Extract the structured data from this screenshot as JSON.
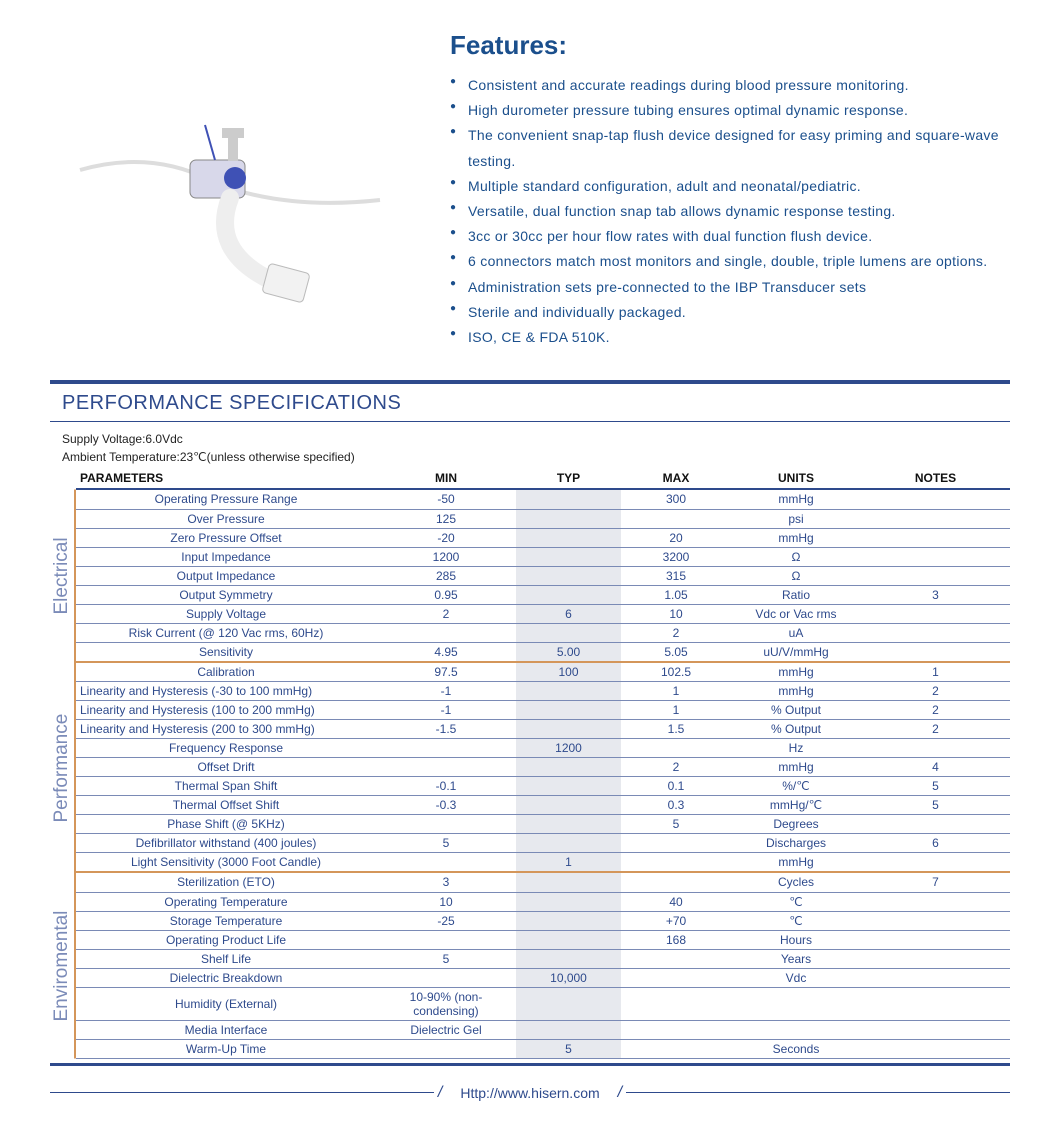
{
  "features": {
    "title": "Features:",
    "items": [
      "Consistent and accurate readings during blood pressure monitoring.",
      "High durometer pressure tubing ensures optimal dynamic response.",
      "The convenient snap-tap flush device designed for easy priming and square-wave testing.",
      "Multiple standard configuration, adult and neonatal/pediatric.",
      "Versatile, dual function snap tab allows dynamic response testing.",
      "3cc or 30cc per hour flow rates with dual function flush device.",
      "6 connectors match most monitors and single, double, triple lumens are options.",
      "Administration sets pre-connected to the IBP Transducer sets",
      "Sterile and individually packaged.",
      "ISO, CE & FDA 510K."
    ]
  },
  "product_image": {
    "description": "IBP Transducer with tubing and connector",
    "accent_color": "#4b5db8",
    "body_color": "#e8e8f0"
  },
  "spec": {
    "title": "PERFORMANCE SPECIFICATIONS",
    "conditions": {
      "line1": "Supply Voltage:6.0Vdc",
      "line2": "Ambient Temperature:23℃(unless otherwise specified)"
    },
    "headers": [
      "PARAMETERS",
      "MIN",
      "TYP",
      "MAX",
      "UNITS",
      "NOTES"
    ],
    "sections": [
      {
        "label": "Electrical",
        "rows": [
          {
            "p": "Operating Pressure Range",
            "min": "-50",
            "typ": "",
            "max": "300",
            "u": "mmHg",
            "n": ""
          },
          {
            "p": "Over  Pressure",
            "min": "125",
            "typ": "",
            "max": "",
            "u": "psi",
            "n": ""
          },
          {
            "p": "Zero Pressure Offset",
            "min": "-20",
            "typ": "",
            "max": "20",
            "u": "mmHg",
            "n": ""
          },
          {
            "p": "Input Impedance",
            "min": "1200",
            "typ": "",
            "max": "3200",
            "u": "Ω",
            "n": ""
          },
          {
            "p": "Output Impedance",
            "min": "285",
            "typ": "",
            "max": "315",
            "u": "Ω",
            "n": ""
          },
          {
            "p": "Output Symmetry",
            "min": "0.95",
            "typ": "",
            "max": "1.05",
            "u": "Ratio",
            "n": "3"
          },
          {
            "p": "Supply Voltage",
            "min": "2",
            "typ": "6",
            "max": "10",
            "u": "Vdc or Vac rms",
            "n": ""
          },
          {
            "p": "Risk Current (@ 120 Vac rms, 60Hz)",
            "min": "",
            "typ": "",
            "max": "2",
            "u": "uA",
            "n": ""
          },
          {
            "p": "Sensitivity",
            "min": "4.95",
            "typ": "5.00",
            "max": "5.05",
            "u": "uU/V/mmHg",
            "n": ""
          }
        ]
      },
      {
        "label": "Performance",
        "rows": [
          {
            "p": "Calibration",
            "min": "97.5",
            "typ": "100",
            "max": "102.5",
            "u": "mmHg",
            "n": "1"
          },
          {
            "p": "Linearity and Hysteresis (-30 to 100 mmHg)",
            "min": "-1",
            "typ": "",
            "max": "1",
            "u": "mmHg",
            "n": "2",
            "left": true
          },
          {
            "p": "Linearity and Hysteresis (100 to 200 mmHg)",
            "min": "-1",
            "typ": "",
            "max": "1",
            "u": "% Output",
            "n": "2",
            "left": true
          },
          {
            "p": "Linearity and Hysteresis (200 to 300 mmHg)",
            "min": "-1.5",
            "typ": "",
            "max": "1.5",
            "u": "% Output",
            "n": "2",
            "left": true
          },
          {
            "p": "Frequency Response",
            "min": "",
            "typ": "1200",
            "max": "",
            "u": "Hz",
            "n": ""
          },
          {
            "p": "Offset Drift",
            "min": "",
            "typ": "",
            "max": "2",
            "u": "mmHg",
            "n": "4"
          },
          {
            "p": "Thermal Span Shift",
            "min": "-0.1",
            "typ": "",
            "max": "0.1",
            "u": "%/℃",
            "n": "5"
          },
          {
            "p": "Thermal Offset Shift",
            "min": "-0.3",
            "typ": "",
            "max": "0.3",
            "u": "mmHg/℃",
            "n": "5"
          },
          {
            "p": "Phase Shift (@ 5KHz)",
            "min": "",
            "typ": "",
            "max": "5",
            "u": "Degrees",
            "n": ""
          },
          {
            "p": "Defibrillator withstand (400 joules)",
            "min": "5",
            "typ": "",
            "max": "",
            "u": "Discharges",
            "n": "6"
          },
          {
            "p": "Light Sensitivity (3000 Foot Candle)",
            "min": "",
            "typ": "1",
            "max": "",
            "u": "mmHg",
            "n": ""
          }
        ]
      },
      {
        "label": "Enviromental",
        "rows": [
          {
            "p": "Sterilization (ETO)",
            "min": "3",
            "typ": "",
            "max": "",
            "u": "Cycles",
            "n": "7"
          },
          {
            "p": "Operating Temperature",
            "min": "10",
            "typ": "",
            "max": "40",
            "u": "℃",
            "n": ""
          },
          {
            "p": "Storage Temperature",
            "min": "-25",
            "typ": "",
            "max": "+70",
            "u": "℃",
            "n": ""
          },
          {
            "p": "Operating Product Life",
            "min": "",
            "typ": "",
            "max": "168",
            "u": "Hours",
            "n": ""
          },
          {
            "p": "Shelf Life",
            "min": "5",
            "typ": "",
            "max": "",
            "u": "Years",
            "n": ""
          },
          {
            "p": "Dielectric Breakdown",
            "min": "",
            "typ": "10,000",
            "max": "",
            "u": "Vdc",
            "n": ""
          },
          {
            "p": "Humidity (External)",
            "min": "10-90% (non-condensing)",
            "typ": "",
            "max": "",
            "u": "",
            "n": ""
          },
          {
            "p": "Media Interface",
            "min": "Dielectric Gel",
            "typ": "",
            "max": "",
            "u": "",
            "n": ""
          },
          {
            "p": "Warm-Up Time",
            "min": "",
            "typ": "5",
            "max": "",
            "u": "Seconds",
            "n": ""
          }
        ]
      }
    ]
  },
  "footer": {
    "url": "Http://www.hisern.com"
  },
  "colors": {
    "brand_blue": "#1b4f8c",
    "table_blue": "#2e4a8c",
    "section_orange": "#d4965a",
    "label_grey_blue": "#7b8bb8",
    "typ_bg": "#e7e9ee"
  }
}
